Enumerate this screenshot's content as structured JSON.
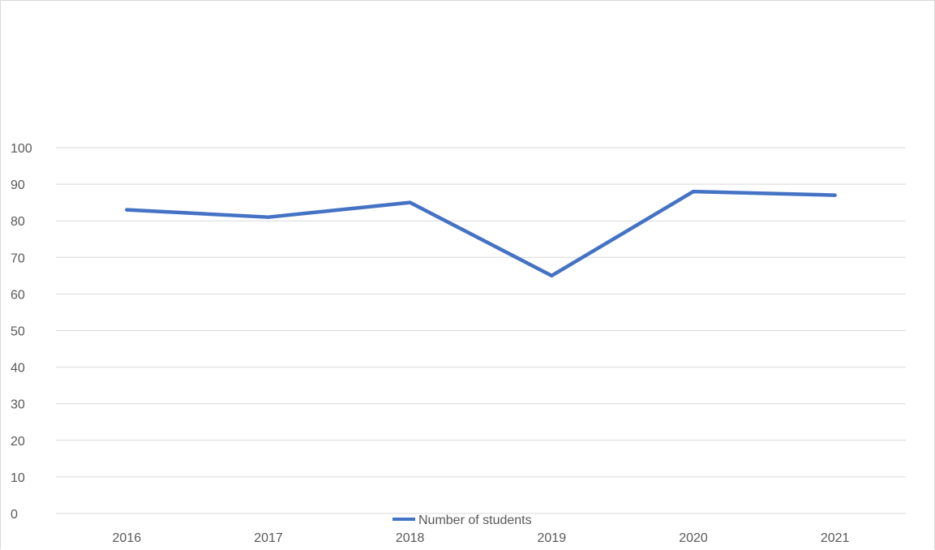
{
  "chart_data": {
    "type": "line",
    "title": "",
    "xlabel": "",
    "ylabel": "",
    "categories": [
      "2016",
      "2017",
      "2018",
      "2019",
      "2020",
      "2021"
    ],
    "series": [
      {
        "name": "Number of students",
        "values": [
          83,
          81,
          85,
          65,
          88,
          87
        ],
        "color": "#4472c4"
      }
    ],
    "ylim": [
      0,
      100
    ],
    "yticks": [
      0,
      10,
      20,
      30,
      40,
      50,
      60,
      70,
      80,
      90,
      100
    ],
    "grid": true,
    "legend_position": "bottom"
  }
}
